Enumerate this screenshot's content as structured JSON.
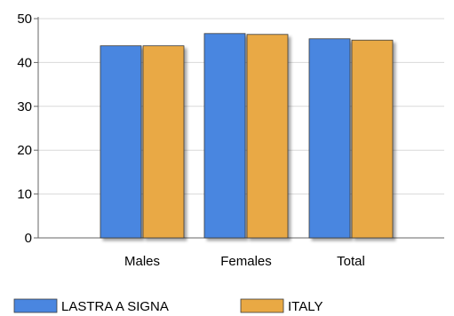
{
  "chart_data": {
    "type": "bar",
    "categories": [
      "Males",
      "Females",
      "Total"
    ],
    "series": [
      {
        "name": "LASTRA A SIGNA",
        "values": [
          43.8,
          46.6,
          45.4
        ],
        "color": "#4a86e0"
      },
      {
        "name": "ITALY",
        "values": [
          43.8,
          46.4,
          45.1
        ],
        "color": "#e9a944"
      }
    ],
    "ylim": [
      0,
      50
    ],
    "yticks": [
      "0",
      "10",
      "20",
      "30",
      "40",
      "50"
    ],
    "grid": true,
    "legend_placement": "bottom-left"
  }
}
